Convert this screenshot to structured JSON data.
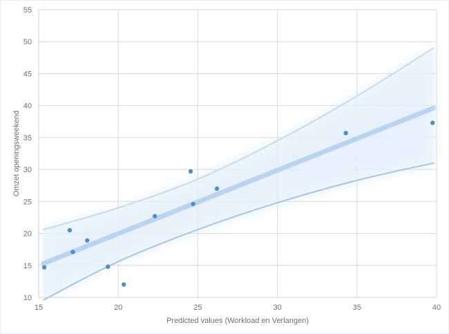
{
  "chart_data": {
    "type": "scatter",
    "title": "",
    "xlabel": "Predicted values (Workload en Verlangen)",
    "ylabel": "Omzet openingsweekend",
    "xlim": [
      15,
      40
    ],
    "ylim": [
      10,
      55
    ],
    "xticks": [
      15,
      20,
      25,
      30,
      35,
      40
    ],
    "yticks": [
      10,
      15,
      20,
      25,
      30,
      35,
      40,
      45,
      50,
      55
    ],
    "grid": true,
    "legend": "none",
    "series": [
      {
        "x": [
          15.35,
          16.95,
          17.15,
          18.05,
          19.35,
          20.35,
          22.3,
          24.55,
          24.7,
          26.2,
          34.3,
          39.75
        ],
        "y": [
          14.7,
          20.5,
          17.1,
          18.9,
          14.8,
          12.0,
          22.7,
          29.7,
          24.6,
          27.0,
          35.7,
          37.3
        ],
        "color": "#4a8fd0"
      }
    ],
    "fit_line": {
      "x": [
        15.3,
        39.8
      ],
      "y": [
        15.3,
        39.6
      ],
      "color": "#b6d3ef"
    },
    "confidence_band": {
      "x": [
        15.3,
        20,
        25,
        30,
        35,
        39.8
      ],
      "upper": [
        20.6,
        24.0,
        28.5,
        34.5,
        41.5,
        49.0
      ],
      "lower": [
        9.6,
        15.6,
        20.6,
        24.8,
        28.3,
        31.0
      ],
      "upper_color": "#c9ddf1",
      "lower_color": "#a9c9ea"
    }
  }
}
